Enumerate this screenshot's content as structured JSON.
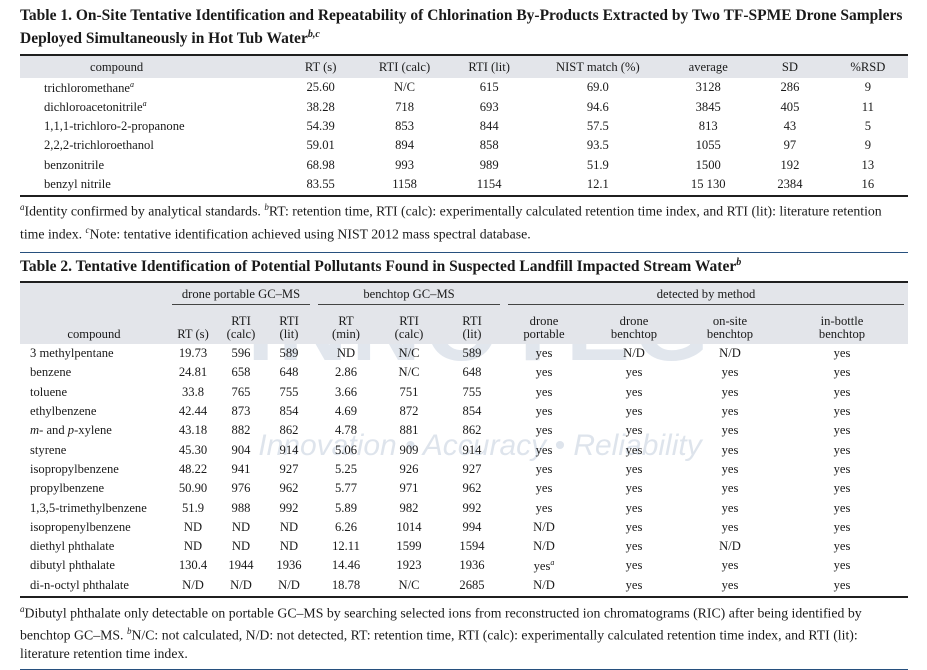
{
  "table1": {
    "title": "Table 1. On-Site Tentative Identification and Repeatability of Chlorination By-Products Extracted by Two TF-SPME Drone Samplers Deployed Simultaneously in Hot Tub Water",
    "title_sup": "b,c",
    "headers": [
      "compound",
      "RT (s)",
      "RTI (calc)",
      "RTI (lit)",
      "NIST match (%)",
      "average",
      "SD",
      "%RSD"
    ],
    "rows": [
      {
        "compound": "trichloromethane",
        "sup": "a",
        "rt": "25.60",
        "rti_calc": "N/C",
        "rti_lit": "615",
        "nist": "69.0",
        "avg": "3128",
        "sd": "286",
        "rsd": "9"
      },
      {
        "compound": "dichloroacetonitrile",
        "sup": "a",
        "rt": "38.28",
        "rti_calc": "718",
        "rti_lit": "693",
        "nist": "94.6",
        "avg": "3845",
        "sd": "405",
        "rsd": "11"
      },
      {
        "compound": "1,1,1-trichloro-2-propanone",
        "sup": "",
        "rt": "54.39",
        "rti_calc": "853",
        "rti_lit": "844",
        "nist": "57.5",
        "avg": "813",
        "sd": "43",
        "rsd": "5"
      },
      {
        "compound": "2,2,2-trichloroethanol",
        "sup": "",
        "rt": "59.01",
        "rti_calc": "894",
        "rti_lit": "858",
        "nist": "93.5",
        "avg": "1055",
        "sd": "97",
        "rsd": "9"
      },
      {
        "compound": "benzonitrile",
        "sup": "",
        "rt": "68.98",
        "rti_calc": "993",
        "rti_lit": "989",
        "nist": "51.9",
        "avg": "1500",
        "sd": "192",
        "rsd": "13"
      },
      {
        "compound": "benzyl nitrile",
        "sup": "",
        "rt": "83.55",
        "rti_calc": "1158",
        "rti_lit": "1154",
        "nist": "12.1",
        "avg": "15 130",
        "sd": "2384",
        "rsd": "16"
      }
    ],
    "footnote": [
      {
        "sup": "a",
        "text": "Identity confirmed by analytical standards. "
      },
      {
        "sup": "b",
        "text": "RT: retention time, RTI (calc): experimentally calculated retention time index, and RTI (lit): literature retention time index. "
      },
      {
        "sup": "c",
        "text": "Note: tentative identification achieved using NIST 2012 mass spectral database."
      }
    ]
  },
  "table2": {
    "title": "Table 2. Tentative Identification of Potential Pollutants Found in Suspected Landfill Impacted Stream Water",
    "title_sup": "b",
    "groups": {
      "drone": "drone portable GC–MS",
      "benchtop": "benchtop GC–MS",
      "detected": "detected by method"
    },
    "headers": {
      "compound": "compound",
      "d_rt": "RT (s)",
      "d_rti_calc": "RTI\n(calc)",
      "d_rti_lit": "RTI\n(lit)",
      "b_rt": "RT\n(min)",
      "b_rti_calc": "RTI\n(calc)",
      "b_rti_lit": "RTI\n(lit)",
      "m_dp": "drone\nportable",
      "m_db": "drone\nbenchtop",
      "m_ob": "on-site\nbenchtop",
      "m_ib": "in-bottle\nbenchtop"
    },
    "rows": [
      {
        "compound": "3 methylpentane",
        "c": [
          "19.73",
          "596",
          "589",
          "ND",
          "N/C",
          "589",
          "yes",
          "N/D",
          "N/D",
          "yes"
        ]
      },
      {
        "compound": "benzene",
        "c": [
          "24.81",
          "658",
          "648",
          "2.86",
          "N/C",
          "648",
          "yes",
          "yes",
          "yes",
          "yes"
        ]
      },
      {
        "compound": "toluene",
        "c": [
          "33.8",
          "765",
          "755",
          "3.66",
          "751",
          "755",
          "yes",
          "yes",
          "yes",
          "yes"
        ]
      },
      {
        "compound": "ethylbenzene",
        "c": [
          "42.44",
          "873",
          "854",
          "4.69",
          "872",
          "854",
          "yes",
          "yes",
          "yes",
          "yes"
        ]
      },
      {
        "compound_parts": [
          "m-",
          " and ",
          "p-",
          "xylene"
        ],
        "c": [
          "43.18",
          "882",
          "862",
          "4.78",
          "881",
          "862",
          "yes",
          "yes",
          "yes",
          "yes"
        ]
      },
      {
        "compound": "styrene",
        "c": [
          "45.30",
          "904",
          "914",
          "5.06",
          "909",
          "914",
          "yes",
          "yes",
          "yes",
          "yes"
        ]
      },
      {
        "compound": "isopropylbenzene",
        "c": [
          "48.22",
          "941",
          "927",
          "5.25",
          "926",
          "927",
          "yes",
          "yes",
          "yes",
          "yes"
        ]
      },
      {
        "compound": "propylbenzene",
        "c": [
          "50.90",
          "976",
          "962",
          "5.77",
          "971",
          "962",
          "yes",
          "yes",
          "yes",
          "yes"
        ]
      },
      {
        "compound": "1,3,5-trimethylbenzene",
        "c": [
          "51.9",
          "988",
          "992",
          "5.89",
          "982",
          "992",
          "yes",
          "yes",
          "yes",
          "yes"
        ]
      },
      {
        "compound": "isopropenylbenzene",
        "c": [
          "ND",
          "ND",
          "ND",
          "6.26",
          "1014",
          "994",
          "N/D",
          "yes",
          "yes",
          "yes"
        ]
      },
      {
        "compound": "diethyl phthalate",
        "c": [
          "ND",
          "ND",
          "ND",
          "12.11",
          "1599",
          "1594",
          "N/D",
          "yes",
          "N/D",
          "yes"
        ]
      },
      {
        "compound": "dibutyl phthalate",
        "c": [
          "130.4",
          "1944",
          "1936",
          "14.46",
          "1923",
          "1936",
          "yes",
          "yes",
          "yes",
          "yes"
        ],
        "sup_col": 6,
        "sup": "a"
      },
      {
        "compound": "di-n-octyl phthalate",
        "c": [
          "N/D",
          "N/D",
          "N/D",
          "18.78",
          "N/C",
          "2685",
          "N/D",
          "yes",
          "yes",
          "yes"
        ]
      }
    ],
    "footnote": [
      {
        "sup": "a",
        "text": "Dibutyl phthalate only detectable on portable GC–MS by searching selected ions from reconstructed ion chromatograms (RIC) after being identified by benchtop GC–MS. "
      },
      {
        "sup": "b",
        "text": "N/C: not calculated, N/D: not detected, RT: retention time, RTI (calc): experimentally calculated retention time index, and RTI (lit): literature retention time index."
      }
    ]
  },
  "watermark": {
    "brand": "INNOTEG",
    "tagline": "Innovation • Accuracy • Reliability"
  },
  "colors": {
    "header_bg": "#e3e5ea",
    "rule_blue": "#27507e",
    "watermark": "#c9d3e0"
  }
}
